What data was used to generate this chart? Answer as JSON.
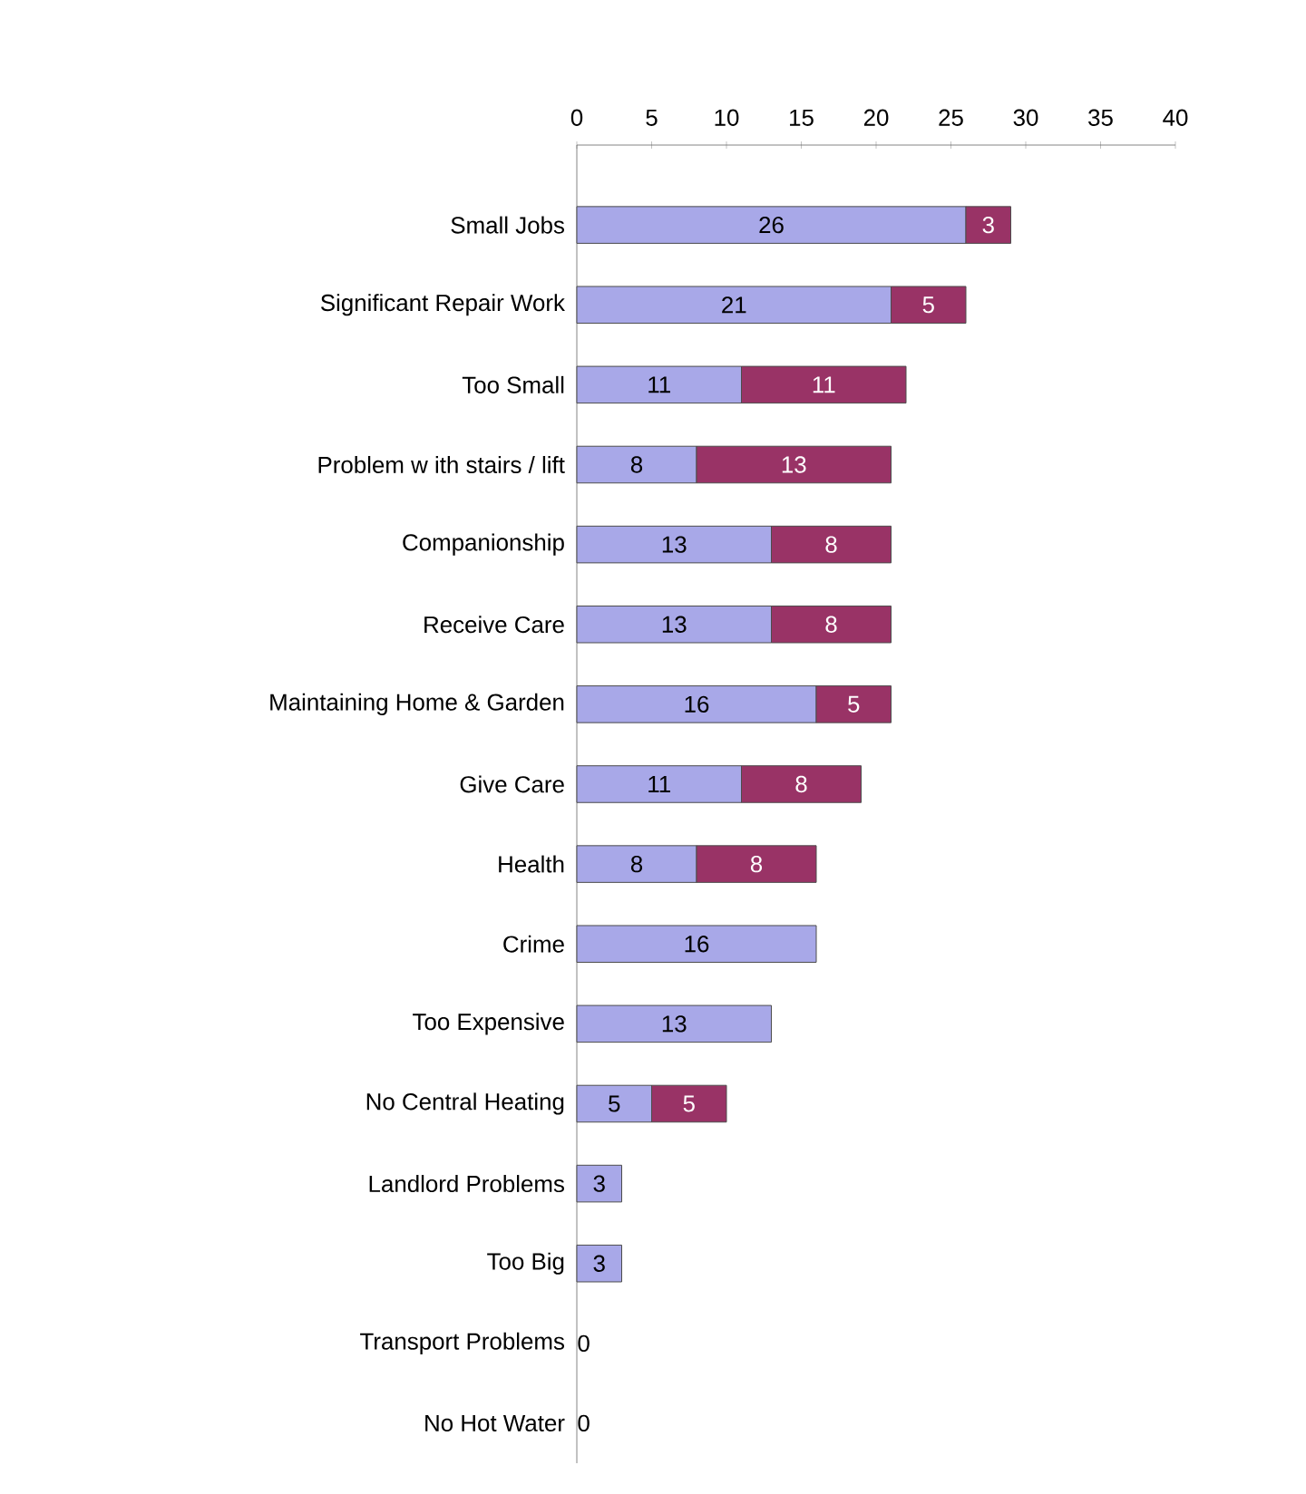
{
  "chart_data": {
    "type": "bar",
    "orientation": "horizontal",
    "stacked": true,
    "categories": [
      "Small Jobs",
      "Significant Repair Work",
      "Too Small",
      "Problem w ith stairs / lift",
      "Companionship",
      "Receive Care",
      "Maintaining Home & Garden",
      "Give Care",
      "Health",
      "Crime",
      "Too Expensive",
      "No Central Heating",
      "Landlord Problems",
      "Too Big",
      "Transport Problems",
      "No Hot Water"
    ],
    "series": [
      {
        "color": "#a8a8e8",
        "values": [
          26,
          21,
          11,
          8,
          13,
          13,
          16,
          11,
          8,
          16,
          13,
          5,
          3,
          3,
          0,
          0
        ]
      },
      {
        "color": "#993366",
        "values": [
          3,
          5,
          11,
          13,
          8,
          8,
          5,
          8,
          8,
          null,
          null,
          5,
          null,
          null,
          null,
          null
        ]
      }
    ],
    "xlim": [
      0,
      40
    ],
    "xticks": [
      0,
      5,
      10,
      15,
      20,
      25,
      30,
      35,
      40
    ],
    "data_labels": true
  }
}
